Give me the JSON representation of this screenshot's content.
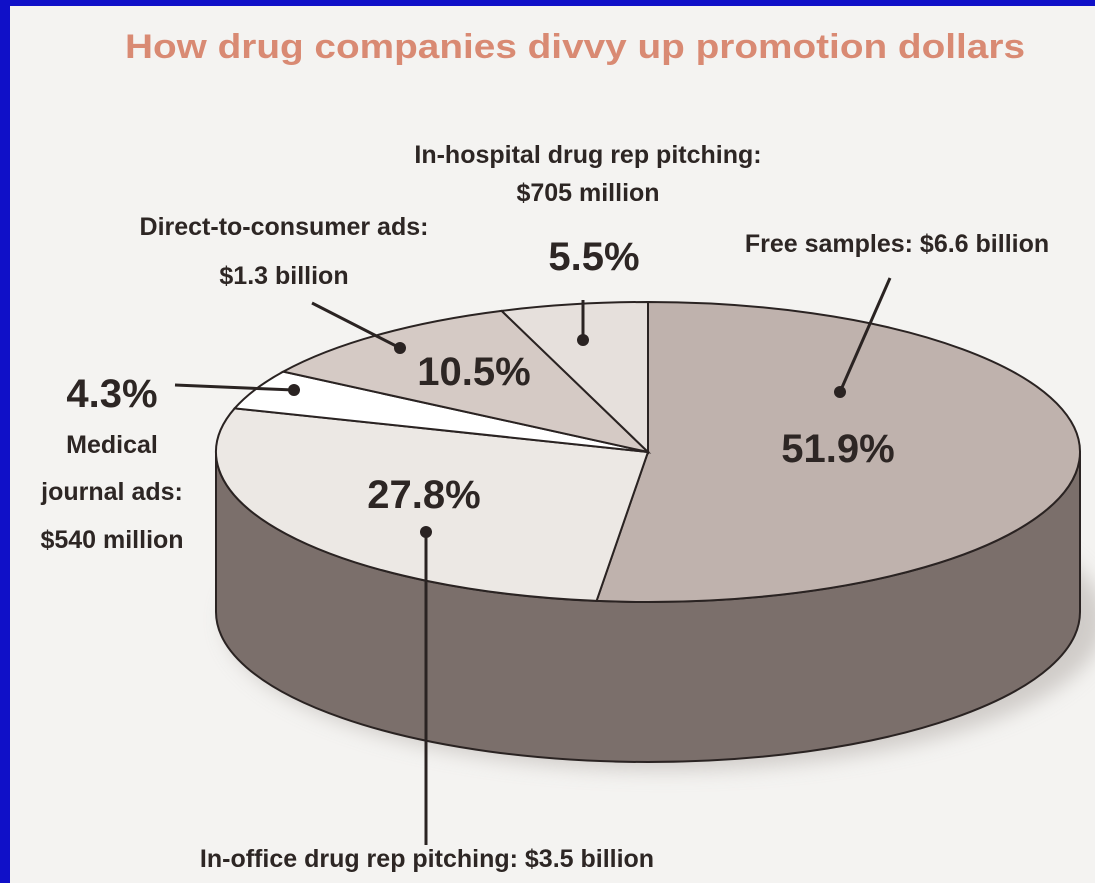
{
  "colors": {
    "frame": "#1010c8",
    "background": "#f4f3f1",
    "title": "#d98a73",
    "text": "#2d2624",
    "side": "#7b6f6b",
    "slice_free_samples": "#bfb2ad",
    "slice_in_office": "#ece8e4",
    "slice_medical_journal": "#ffffff",
    "slice_direct_to_consumer": "#d5cac5",
    "slice_in_hospital": "#e6e0dc"
  },
  "chart_data": {
    "type": "pie",
    "title": "How drug companies divvy up promotion dollars",
    "slices": [
      {
        "label": "Free samples",
        "amount": "$6.6 billion",
        "percent": 51.9,
        "pct_text": "51.9%"
      },
      {
        "label": "In-office drug rep pitching",
        "amount": "$3.5 billion",
        "percent": 27.8,
        "pct_text": "27.8%"
      },
      {
        "label": "Medical journal ads",
        "amount": "$540 million",
        "percent": 4.3,
        "pct_text": "4.3%"
      },
      {
        "label": "Direct-to-consumer ads",
        "amount": "$1.3 billion",
        "percent": 10.5,
        "pct_text": "10.5%"
      },
      {
        "label": "In-hospital drug rep pitching",
        "amount": "$705 million",
        "percent": 5.5,
        "pct_text": "5.5%"
      }
    ]
  },
  "callouts": {
    "in_hospital_line1": "In-hospital drug rep pitching:",
    "in_hospital_line2": "$705 million",
    "dtc_line1": "Direct-to-consumer ads:",
    "dtc_line2": "$1.3 billion",
    "free_samples": "Free samples: $6.6 billion",
    "medical_line1": "Medical",
    "medical_line2": "journal ads:",
    "medical_line3": "$540 million",
    "in_office": "In-office drug rep pitching: $3.5 billion"
  }
}
